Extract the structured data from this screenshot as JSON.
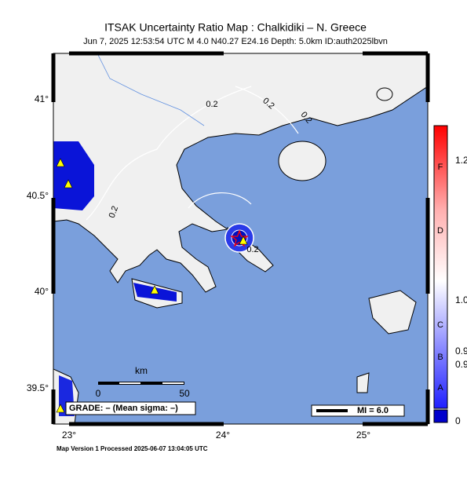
{
  "header": {
    "title": "ITSAK Uncertainty Ratio Map : Chalkidiki – N. Greece",
    "subtitle": "Jun  7, 2025 12:53:54 UTC   M 4.0   N40.27 E24.16   Depth: 5.0km   ID:auth2025lbvn"
  },
  "latitude_labels": [
    "41°",
    "40.5°",
    "40°",
    "39.5°"
  ],
  "longitude_labels": [
    "23°",
    "24°",
    "25°"
  ],
  "colorbar": {
    "values": [
      "1.2",
      "1.0",
      "0.9",
      "0.9",
      "0"
    ],
    "grades": [
      "F",
      "D",
      "C",
      "B",
      "A"
    ]
  },
  "contour_labels": [
    "0.2",
    "0.2",
    "0.2",
    "0.2",
    "0.2"
  ],
  "scale_bar": {
    "unit": "km",
    "labels": [
      "0",
      "50"
    ]
  },
  "grade_legend": "GRADE: – (Mean sigma: –)",
  "mi_legend": "MI = 6.0",
  "footer": "Map Version 1 Processed 2025-06-07 13:04:05 UTC"
}
